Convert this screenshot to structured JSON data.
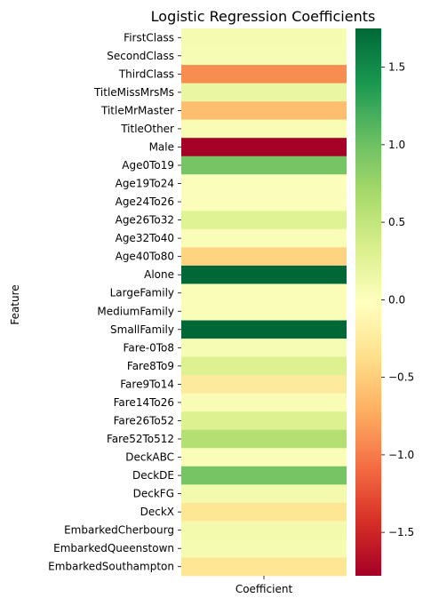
{
  "chart_data": {
    "type": "heatmap",
    "title": "Logistic Regression Coefficients",
    "xlabel": "Coefficient",
    "ylabel": "Feature",
    "colormap": "RdYlGn",
    "vmin": -1.78,
    "vmax": 1.75,
    "colorbar_ticks": [
      1.5,
      1.0,
      0.5,
      0.0,
      -0.5,
      -1.0,
      -1.5
    ],
    "colorbar_tick_labels": [
      "1.5",
      "1.0",
      "0.5",
      "0.0",
      "−0.5",
      "−1.0",
      "−1.5"
    ],
    "columns": [
      "Coefficient"
    ],
    "features": [
      "FirstClass",
      "SecondClass",
      "ThirdClass",
      "TitleMissMrsMs",
      "TitleMrMaster",
      "TitleOther",
      "Male",
      "Age0To19",
      "Age19To24",
      "Age24To26",
      "Age26To32",
      "Age32To40",
      "Age40To80",
      "Alone",
      "LargeFamily",
      "MediumFamily",
      "SmallFamily",
      "Fare-0To8",
      "Fare8To9",
      "Fare9To14",
      "Fare14To26",
      "Fare26To52",
      "Fare52To512",
      "DeckABC",
      "DeckDE",
      "DeckFG",
      "DeckX",
      "EmbarkedCherbourg",
      "EmbarkedQueenstown",
      "EmbarkedSouthampton"
    ],
    "values": [
      0.08,
      0.06,
      -0.9,
      0.18,
      -0.6,
      0.05,
      -1.78,
      0.95,
      0.02,
      0.02,
      0.28,
      0.03,
      -0.45,
      1.75,
      0.04,
      0.04,
      1.75,
      0.06,
      0.3,
      -0.25,
      0.05,
      0.3,
      0.6,
      0.03,
      0.95,
      0.1,
      -0.3,
      0.1,
      0.08,
      -0.3
    ]
  }
}
